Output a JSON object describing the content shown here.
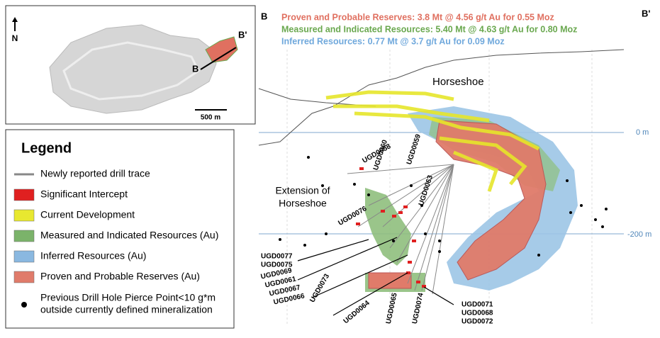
{
  "inset": {
    "north": "N",
    "b_end": "B'",
    "b_start": "B",
    "scale": "500 m"
  },
  "legend": {
    "title": "Legend",
    "items": [
      "Newly reported drill trace",
      "Significant Intercept",
      "Current Development",
      "Measured and Indicated Resources (Au)",
      "Inferred Resources (Au)",
      "Proven and Probable Reserves (Au)"
    ],
    "note_lines": [
      "Previous Drill Hole Pierce Point<10 g*m",
      "outside currently defined mineralization"
    ]
  },
  "section": {
    "start": "B",
    "end": "B'",
    "summary": [
      "Proven and Probable Reserves: 3.8 Mt @ 4.56 g/t Au for 0.55 Moz",
      "Measured and Indicated Resources: 5.40 Mt @ 4.63 g/t Au for 0.80 Moz",
      "Inferred Resources: 0.77 Mt @ 3.7 g/t Au for 0.09 Moz"
    ],
    "horseshoe": "Horseshoe",
    "extension_lines": [
      "Extension of",
      "Horseshoe"
    ],
    "elevations": [
      "0 m",
      "-200 m"
    ],
    "drill_holes": [
      "UGD0058",
      "UGD0060",
      "UGD0059",
      "UGD0063",
      "UGD0076",
      "UGD0077",
      "UGD0075",
      "UGD0069",
      "UGD0061",
      "UGD0067",
      "UGD0066",
      "UGD0073",
      "UGD0064",
      "UGD0065",
      "UGD0074",
      "UGD0071",
      "UGD0068",
      "UGD0072"
    ]
  }
}
